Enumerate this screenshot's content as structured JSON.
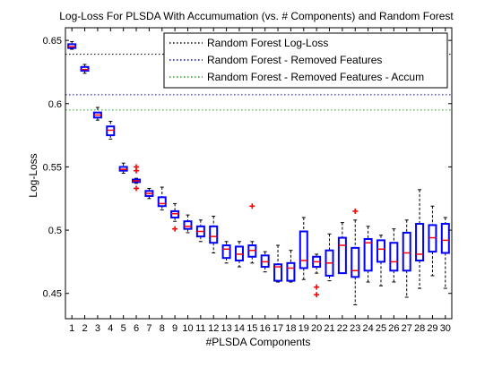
{
  "chart_data": {
    "type": "box",
    "title": "Log-Loss For PLSDA With Accumumation (vs. # Components) and Random Forest",
    "xlabel": "#PLSDA Components",
    "ylabel": "Log-Loss",
    "xlim": [
      0.5,
      30.5
    ],
    "ylim": [
      0.43,
      0.66
    ],
    "x_ticks": [
      "1",
      "2",
      "3",
      "4",
      "5",
      "6",
      "7",
      "8",
      "9",
      "10",
      "11",
      "12",
      "13",
      "14",
      "15",
      "16",
      "17",
      "18",
      "19",
      "20",
      "21",
      "22",
      "23",
      "24",
      "25",
      "26",
      "27",
      "28",
      "29",
      "30"
    ],
    "y_ticks": [
      {
        "value": 0.45,
        "label": "0.45"
      },
      {
        "value": 0.5,
        "label": "0.5"
      },
      {
        "value": 0.55,
        "label": "0.55"
      },
      {
        "value": 0.6,
        "label": "0.6"
      },
      {
        "value": 0.65,
        "label": "0.65"
      }
    ],
    "grid": false,
    "legend_position": "top-right",
    "reference_lines": [
      {
        "name": "Random Forest Log-Loss",
        "y": 0.639,
        "color": "#000000",
        "style": "dotted"
      },
      {
        "name": "Random Forest - Removed Features",
        "y": 0.607,
        "color": "#0000ff",
        "style": "dotted"
      },
      {
        "name": "Random Forest - Removed Features - Accum",
        "y": 0.595,
        "color": "#00bb00",
        "style": "dotted"
      }
    ],
    "box_color": "#0000ff",
    "median_color": "#ff0000",
    "whisker_color": "#000000",
    "outlier_color": "#ff0000",
    "boxes": [
      {
        "x": 1,
        "whislo": 0.643,
        "q1": 0.644,
        "med": 0.645,
        "q3": 0.647,
        "whishi": 0.649,
        "fliers": []
      },
      {
        "x": 2,
        "whislo": 0.624,
        "q1": 0.626,
        "med": 0.627,
        "q3": 0.629,
        "whishi": 0.631,
        "fliers": []
      },
      {
        "x": 3,
        "whislo": 0.587,
        "q1": 0.589,
        "med": 0.591,
        "q3": 0.593,
        "whishi": 0.597,
        "fliers": []
      },
      {
        "x": 4,
        "whislo": 0.572,
        "q1": 0.575,
        "med": 0.579,
        "q3": 0.582,
        "whishi": 0.586,
        "fliers": []
      },
      {
        "x": 5,
        "whislo": 0.545,
        "q1": 0.547,
        "med": 0.548,
        "q3": 0.55,
        "whishi": 0.553,
        "fliers": []
      },
      {
        "x": 6,
        "whislo": 0.537,
        "q1": 0.538,
        "med": 0.539,
        "q3": 0.54,
        "whishi": 0.541,
        "fliers": [
          0.533,
          0.547,
          0.55
        ]
      },
      {
        "x": 7,
        "whislo": 0.525,
        "q1": 0.527,
        "med": 0.529,
        "q3": 0.531,
        "whishi": 0.533,
        "fliers": []
      },
      {
        "x": 8,
        "whislo": 0.516,
        "q1": 0.519,
        "med": 0.521,
        "q3": 0.526,
        "whishi": 0.534,
        "fliers": []
      },
      {
        "x": 9,
        "whislo": 0.507,
        "q1": 0.51,
        "med": 0.513,
        "q3": 0.515,
        "whishi": 0.521,
        "fliers": [
          0.501
        ]
      },
      {
        "x": 10,
        "whislo": 0.498,
        "q1": 0.501,
        "med": 0.503,
        "q3": 0.507,
        "whishi": 0.512,
        "fliers": []
      },
      {
        "x": 11,
        "whislo": 0.491,
        "q1": 0.495,
        "med": 0.499,
        "q3": 0.503,
        "whishi": 0.508,
        "fliers": []
      },
      {
        "x": 12,
        "whislo": 0.482,
        "q1": 0.49,
        "med": 0.495,
        "q3": 0.503,
        "whishi": 0.511,
        "fliers": []
      },
      {
        "x": 13,
        "whislo": 0.474,
        "q1": 0.478,
        "med": 0.485,
        "q3": 0.488,
        "whishi": 0.491,
        "fliers": []
      },
      {
        "x": 14,
        "whislo": 0.471,
        "q1": 0.476,
        "med": 0.481,
        "q3": 0.487,
        "whishi": 0.491,
        "fliers": []
      },
      {
        "x": 15,
        "whislo": 0.474,
        "q1": 0.479,
        "med": 0.484,
        "q3": 0.488,
        "whishi": 0.491,
        "fliers": [
          0.519
        ]
      },
      {
        "x": 16,
        "whislo": 0.467,
        "q1": 0.471,
        "med": 0.475,
        "q3": 0.48,
        "whishi": 0.483,
        "fliers": []
      },
      {
        "x": 17,
        "whislo": 0.459,
        "q1": 0.46,
        "med": 0.471,
        "q3": 0.473,
        "whishi": 0.488,
        "fliers": []
      },
      {
        "x": 18,
        "whislo": 0.459,
        "q1": 0.46,
        "med": 0.47,
        "q3": 0.474,
        "whishi": 0.484,
        "fliers": []
      },
      {
        "x": 19,
        "whislo": 0.461,
        "q1": 0.47,
        "med": 0.476,
        "q3": 0.499,
        "whishi": 0.51,
        "fliers": []
      },
      {
        "x": 20,
        "whislo": 0.466,
        "q1": 0.471,
        "med": 0.475,
        "q3": 0.479,
        "whishi": 0.481,
        "fliers": [
          0.449,
          0.455
        ]
      },
      {
        "x": 21,
        "whislo": 0.46,
        "q1": 0.464,
        "med": 0.474,
        "q3": 0.484,
        "whishi": 0.497,
        "fliers": []
      },
      {
        "x": 22,
        "whislo": 0.466,
        "q1": 0.466,
        "med": 0.488,
        "q3": 0.494,
        "whishi": 0.506,
        "fliers": []
      },
      {
        "x": 23,
        "whislo": 0.441,
        "q1": 0.463,
        "med": 0.468,
        "q3": 0.486,
        "whishi": 0.508,
        "fliers": [
          0.515
        ]
      },
      {
        "x": 24,
        "whislo": 0.459,
        "q1": 0.468,
        "med": 0.49,
        "q3": 0.493,
        "whishi": 0.503,
        "fliers": []
      },
      {
        "x": 25,
        "whislo": 0.456,
        "q1": 0.475,
        "med": 0.485,
        "q3": 0.492,
        "whishi": 0.496,
        "fliers": []
      },
      {
        "x": 26,
        "whislo": 0.459,
        "q1": 0.468,
        "med": 0.475,
        "q3": 0.49,
        "whishi": 0.501,
        "fliers": []
      },
      {
        "x": 27,
        "whislo": 0.447,
        "q1": 0.468,
        "med": 0.482,
        "q3": 0.498,
        "whishi": 0.508,
        "fliers": []
      },
      {
        "x": 28,
        "whislo": 0.454,
        "q1": 0.476,
        "med": 0.481,
        "q3": 0.505,
        "whishi": 0.532,
        "fliers": []
      },
      {
        "x": 29,
        "whislo": 0.464,
        "q1": 0.483,
        "med": 0.494,
        "q3": 0.504,
        "whishi": 0.519,
        "fliers": []
      },
      {
        "x": 30,
        "whislo": 0.454,
        "q1": 0.482,
        "med": 0.492,
        "q3": 0.505,
        "whishi": 0.51,
        "fliers": []
      }
    ]
  }
}
